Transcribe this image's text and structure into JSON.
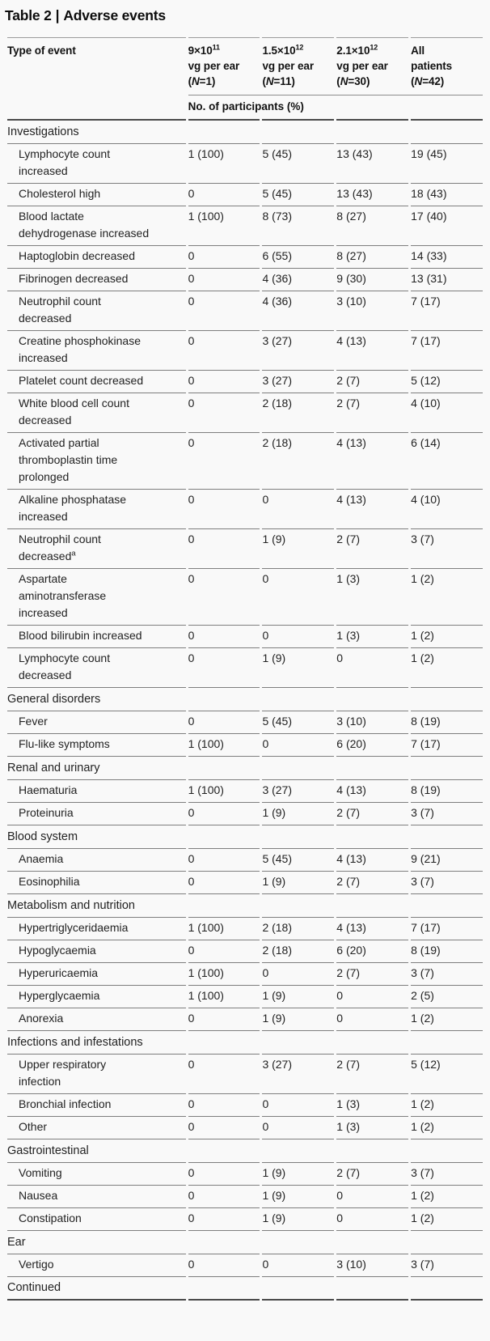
{
  "title": {
    "prefix": "Table 2",
    "separator": "|",
    "text": "Adverse events"
  },
  "colors": {
    "background": "#f9f9f9",
    "text": "#1c1c1c",
    "rule_light": "#9b9b9b",
    "rule_medium": "#7e7e7e",
    "rule_heavy": "#4a4a4a"
  },
  "table": {
    "row_header": "Type of event",
    "columns": [
      {
        "base": "9×10",
        "sup": "11",
        "unit": "vg per ear",
        "n_label": "N",
        "n_suffix": "=1)"
      },
      {
        "base": "1.5×10",
        "sup": "12",
        "unit": "vg per ear",
        "n_label": "N",
        "n_suffix": "=11)"
      },
      {
        "base": "2.1×10",
        "sup": "12",
        "unit": "vg per ear",
        "n_label": "N",
        "n_suffix": "=30)"
      },
      {
        "base": "All",
        "sup": "",
        "unit": "patients",
        "n_label": "N",
        "n_suffix": "=42)"
      }
    ],
    "subheader": "No. of participants (%)",
    "sections": [
      {
        "name": "Investigations",
        "rows": [
          {
            "label": "Lymphocyte count increased",
            "values": [
              "1 (100)",
              "5 (45)",
              "13 (43)",
              "19 (45)"
            ]
          },
          {
            "label": "Cholesterol high",
            "values": [
              "0",
              "5 (45)",
              "13 (43)",
              "18 (43)"
            ]
          },
          {
            "label": "Blood lactate dehydrogenase increased",
            "values": [
              "1 (100)",
              "8 (73)",
              "8 (27)",
              "17 (40)"
            ]
          },
          {
            "label": "Haptoglobin decreased",
            "values": [
              "0",
              "6 (55)",
              "8 (27)",
              "14 (33)"
            ]
          },
          {
            "label": "Fibrinogen decreased",
            "values": [
              "0",
              "4 (36)",
              "9 (30)",
              "13 (31)"
            ]
          },
          {
            "label": "Neutrophil count decreased",
            "values": [
              "0",
              "4 (36)",
              "3 (10)",
              "7 (17)"
            ]
          },
          {
            "label": "Creatine phosphokinase increased",
            "values": [
              "0",
              "3 (27)",
              "4 (13)",
              "7 (17)"
            ]
          },
          {
            "label": "Platelet count decreased",
            "values": [
              "0",
              "3 (27)",
              "2 (7)",
              "5 (12)"
            ]
          },
          {
            "label": "White blood cell count decreased",
            "values": [
              "0",
              "2 (18)",
              "2 (7)",
              "4 (10)"
            ]
          },
          {
            "label": "Activated partial thromboplastin time prolonged",
            "values": [
              "0",
              "2 (18)",
              "4 (13)",
              "6 (14)"
            ]
          },
          {
            "label": "Alkaline phosphatase increased",
            "values": [
              "0",
              "0",
              "4 (13)",
              "4 (10)"
            ]
          },
          {
            "label": "Neutrophil count decreased",
            "label_sup": "a",
            "values": [
              "0",
              "1 (9)",
              "2 (7)",
              "3 (7)"
            ]
          },
          {
            "label": "Aspartate aminotransferase increased",
            "values": [
              "0",
              "0",
              "1 (3)",
              "1 (2)"
            ]
          },
          {
            "label": "Blood bilirubin increased",
            "values": [
              "0",
              "0",
              "1 (3)",
              "1 (2)"
            ]
          },
          {
            "label": "Lymphocyte count decreased",
            "values": [
              "0",
              "1 (9)",
              "0",
              "1 (2)"
            ]
          }
        ]
      },
      {
        "name": "General disorders",
        "rows": [
          {
            "label": "Fever",
            "values": [
              "0",
              "5 (45)",
              "3 (10)",
              "8 (19)"
            ]
          },
          {
            "label": "Flu-like symptoms",
            "values": [
              "1 (100)",
              "0",
              "6 (20)",
              "7 (17)"
            ]
          }
        ]
      },
      {
        "name": "Renal and urinary",
        "rows": [
          {
            "label": "Haematuria",
            "values": [
              "1 (100)",
              "3 (27)",
              "4 (13)",
              "8 (19)"
            ]
          },
          {
            "label": "Proteinuria",
            "values": [
              "0",
              "1 (9)",
              "2 (7)",
              "3 (7)"
            ]
          }
        ]
      },
      {
        "name": "Blood system",
        "rows": [
          {
            "label": "Anaemia",
            "values": [
              "0",
              "5 (45)",
              "4 (13)",
              "9 (21)"
            ]
          },
          {
            "label": "Eosinophilia",
            "values": [
              "0",
              "1 (9)",
              "2 (7)",
              "3 (7)"
            ]
          }
        ]
      },
      {
        "name": "Metabolism and nutrition",
        "rows": [
          {
            "label": "Hypertriglyceridaemia",
            "values": [
              "1 (100)",
              "2 (18)",
              "4 (13)",
              "7 (17)"
            ]
          },
          {
            "label": "Hypoglycaemia",
            "values": [
              "0",
              "2 (18)",
              "6 (20)",
              "8 (19)"
            ]
          },
          {
            "label": "Hyperuricaemia",
            "values": [
              "1 (100)",
              "0",
              "2 (7)",
              "3 (7)"
            ]
          },
          {
            "label": "Hyperglycaemia",
            "values": [
              "1 (100)",
              "1 (9)",
              "0",
              "2 (5)"
            ]
          },
          {
            "label": "Anorexia",
            "values": [
              "0",
              "1 (9)",
              "0",
              "1 (2)"
            ]
          }
        ]
      },
      {
        "name": "Infections and infestations",
        "rows": [
          {
            "label": "Upper respiratory infection",
            "values": [
              "0",
              "3 (27)",
              "2 (7)",
              "5 (12)"
            ]
          },
          {
            "label": "Bronchial infection",
            "values": [
              "0",
              "0",
              "1 (3)",
              "1 (2)"
            ]
          },
          {
            "label": "Other",
            "values": [
              "0",
              "0",
              "1 (3)",
              "1 (2)"
            ]
          }
        ]
      },
      {
        "name": "Gastrointestinal",
        "rows": [
          {
            "label": "Vomiting",
            "values": [
              "0",
              "1 (9)",
              "2 (7)",
              "3 (7)"
            ]
          },
          {
            "label": "Nausea",
            "values": [
              "0",
              "1 (9)",
              "0",
              "1 (2)"
            ]
          },
          {
            "label": "Constipation",
            "values": [
              "0",
              "1 (9)",
              "0",
              "1 (2)"
            ]
          }
        ]
      },
      {
        "name": "Ear",
        "rows": [
          {
            "label": "Vertigo",
            "values": [
              "0",
              "0",
              "3 (10)",
              "3 (7)"
            ]
          }
        ]
      }
    ],
    "footer": "Continued"
  }
}
